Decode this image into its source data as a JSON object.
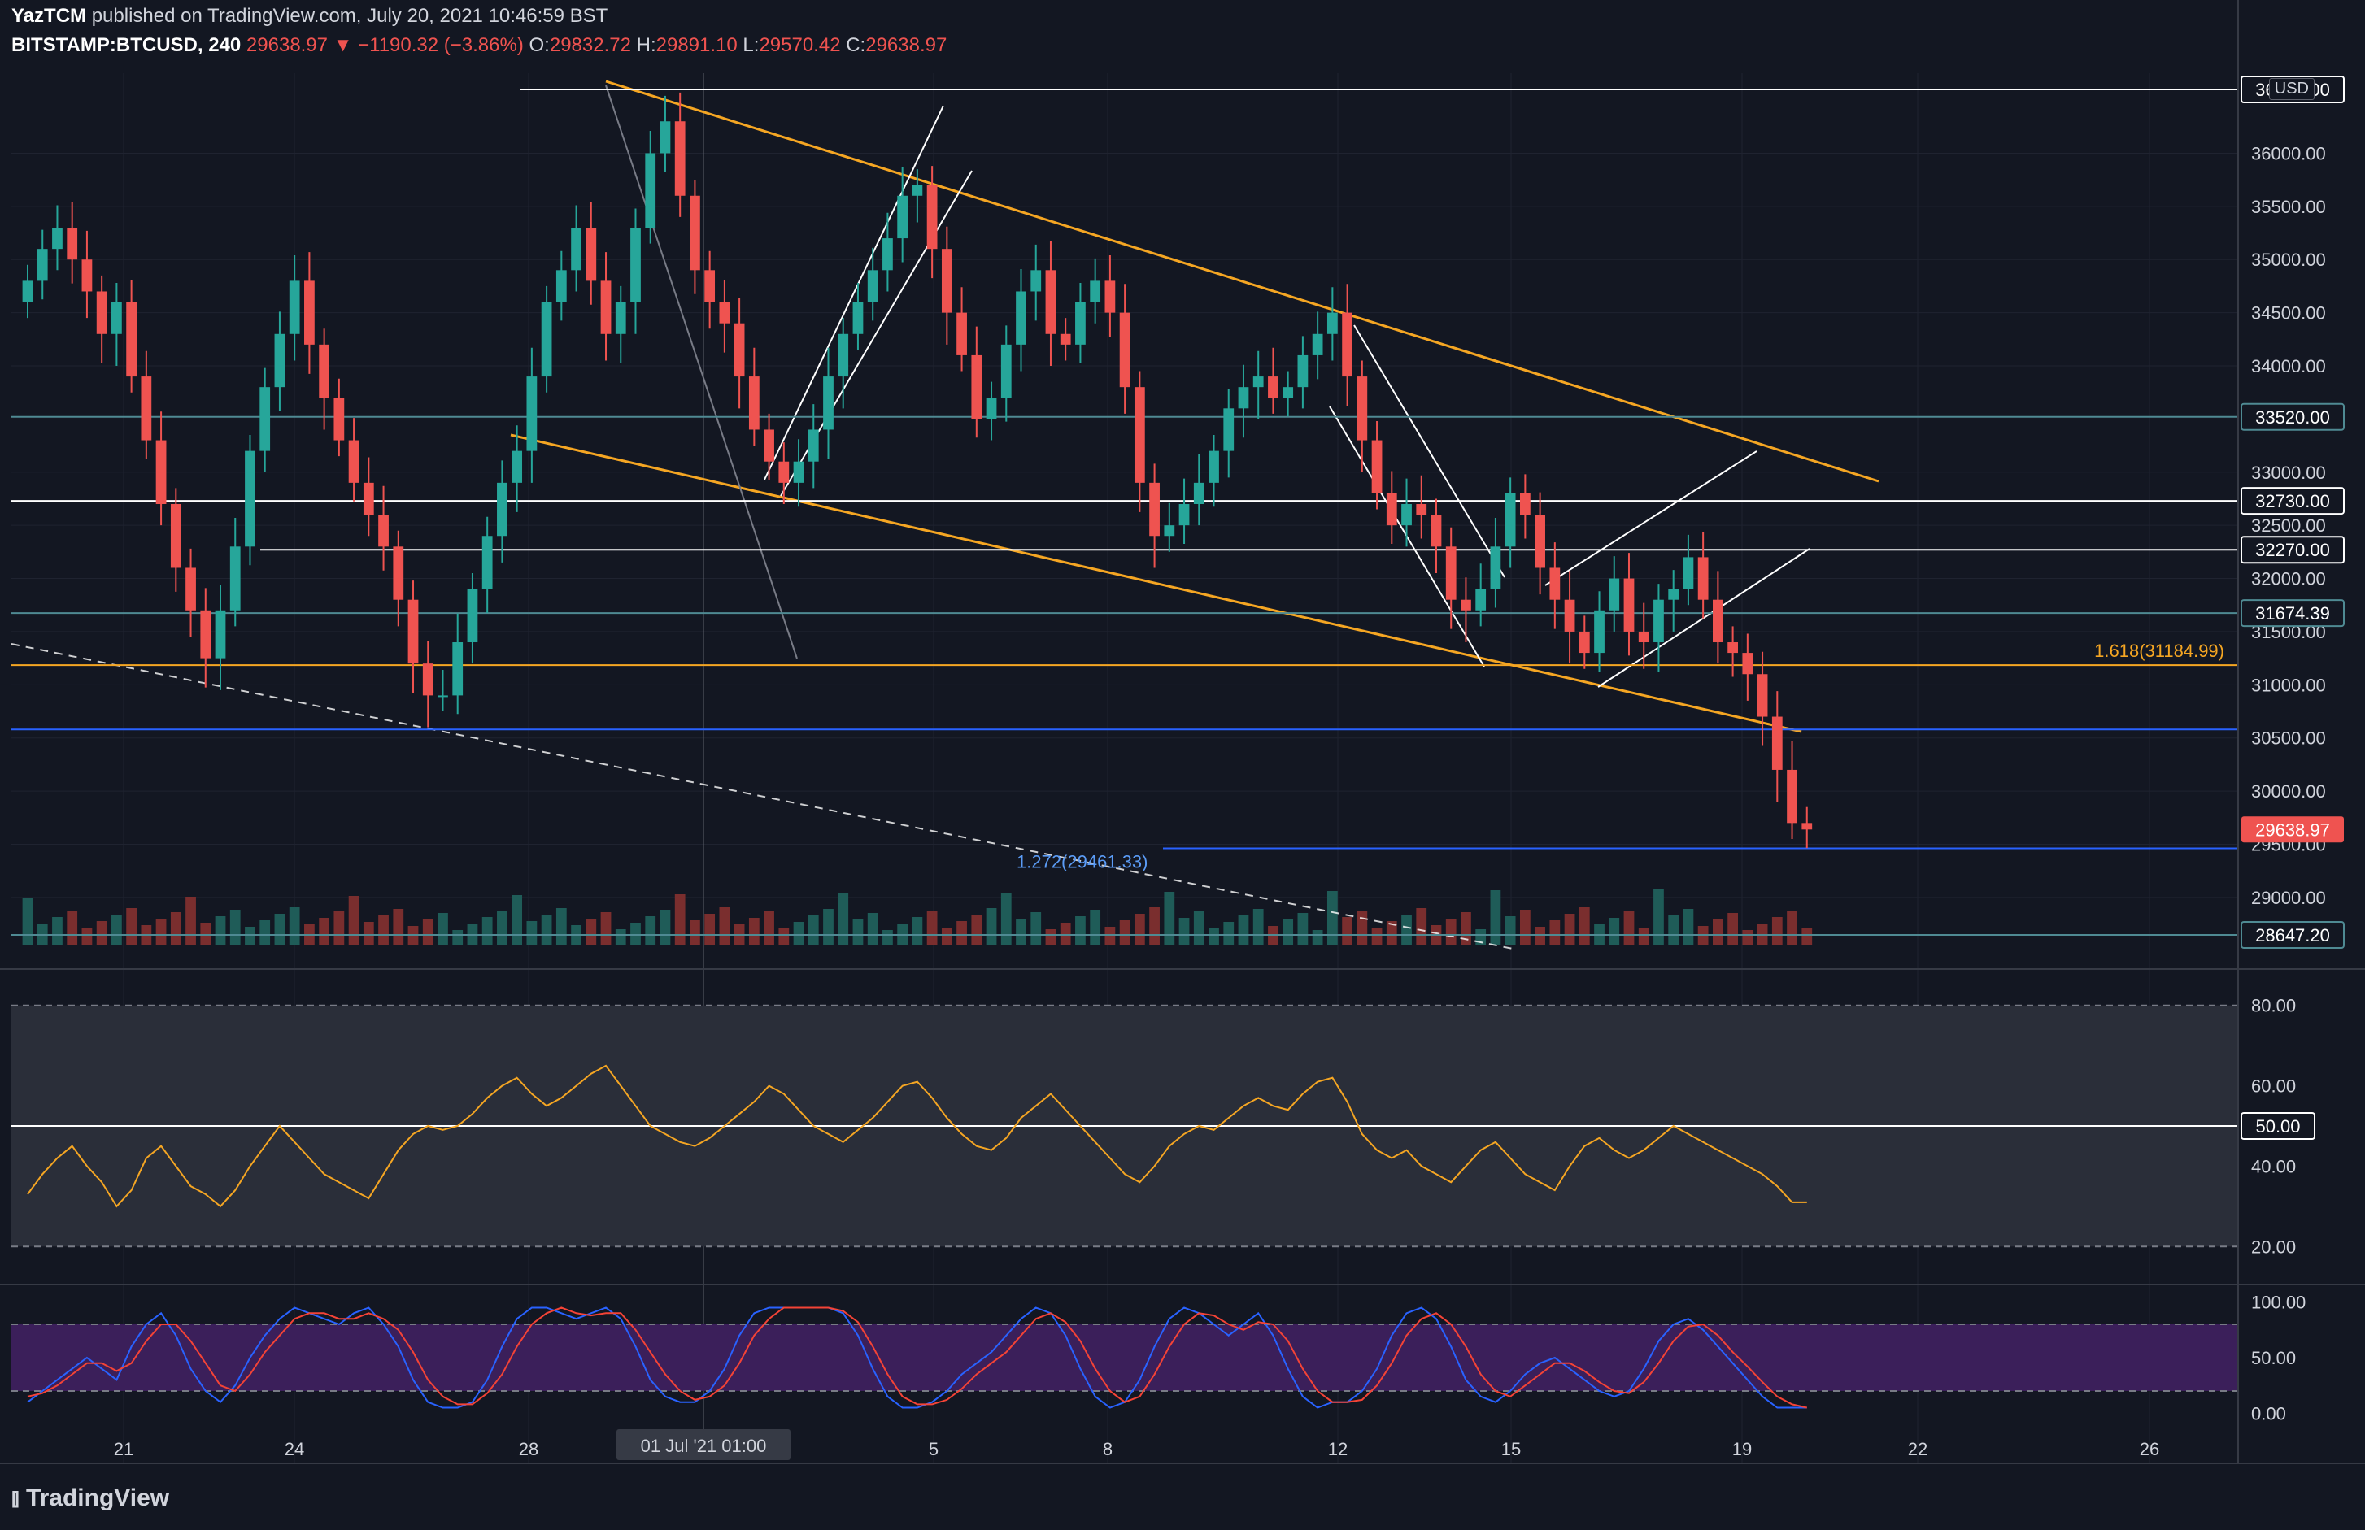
{
  "header": {
    "publisher": "YazTCM",
    "published_text": "published on TradingView.com, July 20, 2021 10:46:59 BST",
    "symbol": "BITSTAMP:BTCUSD, 240",
    "last": "29638.97",
    "change": "▼ −1190.32 (−3.86%)",
    "o_label": "O:",
    "o": "29832.72",
    "h_label": "H:",
    "h": "29891.10",
    "l_label": "L:",
    "l": "29570.42",
    "c_label": "C:",
    "c": "29638.97"
  },
  "logo": "TradingView",
  "currency": "USD",
  "x_axis": {
    "ticks": [
      "21",
      "24",
      "28",
      "5",
      "8",
      "12",
      "15",
      "19",
      "22",
      "26"
    ],
    "crosshair_label": "01 Jul '21   01:00"
  },
  "colors": {
    "up": "#26a69a",
    "down": "#ef5350",
    "trend": "#f5a623",
    "level": "#ffffff",
    "teal_level": "#4f8a93",
    "blue_level": "#2962ff",
    "rsi": "#f5a623",
    "stoch_k": "#2962ff",
    "stoch_d": "#f44336"
  },
  "chart_data": [
    {
      "type": "candlestick",
      "symbol": "BITSTAMP:BTCUSD",
      "interval": "240",
      "y_ticks": [
        "36000.00",
        "35500.00",
        "35000.00",
        "34500.00",
        "34000.00",
        "33500.00",
        "33000.00",
        "32500.00",
        "32000.00",
        "31500.00",
        "31000.00",
        "30500.00",
        "30000.00",
        "29500.00",
        "29000.00"
      ],
      "ylim": [
        28647.2,
        36600
      ],
      "close_series": [
        34800,
        35100,
        35300,
        35000,
        34700,
        34300,
        34600,
        33900,
        33300,
        32700,
        32100,
        31700,
        31250,
        31700,
        32300,
        33200,
        33800,
        34300,
        34800,
        34200,
        33700,
        33300,
        32900,
        32600,
        32300,
        31800,
        31200,
        30900,
        30900,
        31400,
        31900,
        32400,
        32900,
        33200,
        33900,
        34600,
        34900,
        35300,
        34800,
        34300,
        34600,
        35300,
        36000,
        36300,
        35600,
        34900,
        34600,
        34400,
        33900,
        33400,
        33100,
        32900,
        33100,
        33400,
        33900,
        34300,
        34600,
        34900,
        35200,
        35600,
        35700,
        35100,
        34500,
        34100,
        33500,
        33700,
        34200,
        34700,
        34900,
        34300,
        34200,
        34600,
        34800,
        34500,
        33800,
        32900,
        32400,
        32500,
        32700,
        32900,
        33200,
        33600,
        33800,
        33900,
        33700,
        33800,
        34100,
        34300,
        34500,
        33900,
        33300,
        32800,
        32500,
        32700,
        32600,
        32300,
        31800,
        31700,
        31900,
        32300,
        32800,
        32600,
        32100,
        31800,
        31500,
        31300,
        31700,
        32000,
        31500,
        31400,
        31800,
        31900,
        32200,
        31800,
        31400,
        31300,
        31100,
        30700,
        30200,
        29700,
        29638.97
      ],
      "series": [
        {
          "name": "BTCUSD",
          "last": 29638.97
        }
      ],
      "levels": [
        {
          "label": "36600.00",
          "value": 36600,
          "color": "white"
        },
        {
          "label": "33520.00",
          "value": 33520,
          "color": "teal"
        },
        {
          "label": "32730.00",
          "value": 32730,
          "color": "white"
        },
        {
          "label": "32270.00",
          "value": 32270,
          "color": "white"
        },
        {
          "label": "31674.39",
          "value": 31674.39,
          "color": "teal"
        },
        {
          "label": "30580.00",
          "value": 30580,
          "color": "blue"
        },
        {
          "label": "28647.20",
          "value": 28647.2,
          "color": "teal"
        }
      ],
      "fib_labels": [
        {
          "label": "1.618(31184.99)",
          "value": 31184.99
        },
        {
          "label": "1.272(29461.33)",
          "value": 29461.33
        }
      ],
      "last_price_label": "29638.97"
    },
    {
      "type": "line",
      "name": "RSI",
      "y_ticks": [
        "80.00",
        "60.00",
        "40.00",
        "20.00"
      ],
      "ylim": [
        15,
        85
      ],
      "midline_label": "50.00",
      "upper_band": 80,
      "lower_band": 20,
      "values": [
        33,
        38,
        42,
        45,
        40,
        36,
        30,
        34,
        42,
        45,
        40,
        35,
        33,
        30,
        34,
        40,
        45,
        50,
        46,
        42,
        38,
        36,
        34,
        32,
        38,
        44,
        48,
        50,
        49,
        50,
        53,
        57,
        60,
        62,
        58,
        55,
        57,
        60,
        63,
        65,
        60,
        55,
        50,
        48,
        46,
        45,
        47,
        50,
        53,
        56,
        60,
        58,
        54,
        50,
        48,
        46,
        49,
        52,
        56,
        60,
        61,
        57,
        52,
        48,
        45,
        44,
        47,
        52,
        55,
        58,
        54,
        50,
        46,
        42,
        38,
        36,
        40,
        45,
        48,
        50,
        49,
        52,
        55,
        57,
        55,
        54,
        58,
        61,
        62,
        56,
        48,
        44,
        42,
        44,
        40,
        38,
        36,
        40,
        44,
        46,
        42,
        38,
        36,
        34,
        40,
        45,
        47,
        44,
        42,
        44,
        47,
        50,
        48,
        46,
        44,
        42,
        40,
        38,
        35,
        31,
        31
      ]
    },
    {
      "type": "line",
      "name": "Stochastic RSI",
      "y_ticks": [
        "100.00",
        "50.00",
        "0.00"
      ],
      "ylim": [
        -10,
        110
      ],
      "upper_band": 80,
      "lower_band": 20,
      "series": [
        {
          "name": "K",
          "values": [
            10,
            20,
            30,
            40,
            50,
            40,
            30,
            60,
            80,
            90,
            70,
            40,
            20,
            10,
            25,
            50,
            70,
            85,
            95,
            90,
            85,
            80,
            90,
            95,
            80,
            60,
            30,
            10,
            5,
            5,
            10,
            30,
            60,
            85,
            95,
            95,
            90,
            85,
            90,
            95,
            85,
            60,
            30,
            15,
            10,
            10,
            20,
            40,
            70,
            90,
            95,
            95,
            95,
            95,
            95,
            90,
            70,
            40,
            15,
            5,
            5,
            10,
            20,
            35,
            45,
            55,
            70,
            85,
            95,
            90,
            70,
            40,
            15,
            5,
            10,
            30,
            60,
            85,
            95,
            90,
            80,
            70,
            80,
            90,
            70,
            40,
            15,
            5,
            10,
            10,
            20,
            40,
            70,
            90,
            95,
            85,
            60,
            30,
            15,
            10,
            20,
            35,
            45,
            50,
            40,
            30,
            20,
            15,
            20,
            40,
            65,
            80,
            85,
            75,
            60,
            45,
            30,
            15,
            5,
            5,
            5
          ]
        },
        {
          "name": "D",
          "values": [
            15,
            18,
            25,
            35,
            45,
            45,
            38,
            45,
            65,
            80,
            80,
            65,
            45,
            25,
            20,
            35,
            55,
            70,
            85,
            90,
            90,
            85,
            85,
            90,
            85,
            75,
            55,
            30,
            15,
            8,
            8,
            18,
            35,
            60,
            80,
            90,
            95,
            90,
            88,
            90,
            90,
            75,
            55,
            35,
            20,
            12,
            15,
            25,
            45,
            70,
            85,
            95,
            95,
            95,
            95,
            92,
            82,
            60,
            35,
            15,
            8,
            8,
            12,
            22,
            35,
            45,
            55,
            70,
            85,
            90,
            82,
            65,
            40,
            20,
            10,
            15,
            35,
            60,
            80,
            90,
            88,
            80,
            75,
            82,
            80,
            65,
            40,
            20,
            10,
            10,
            12,
            25,
            45,
            70,
            85,
            90,
            80,
            60,
            35,
            20,
            15,
            25,
            35,
            45,
            45,
            38,
            28,
            20,
            18,
            28,
            45,
            65,
            78,
            80,
            70,
            55,
            42,
            28,
            15,
            8,
            5
          ]
        }
      ]
    }
  ]
}
